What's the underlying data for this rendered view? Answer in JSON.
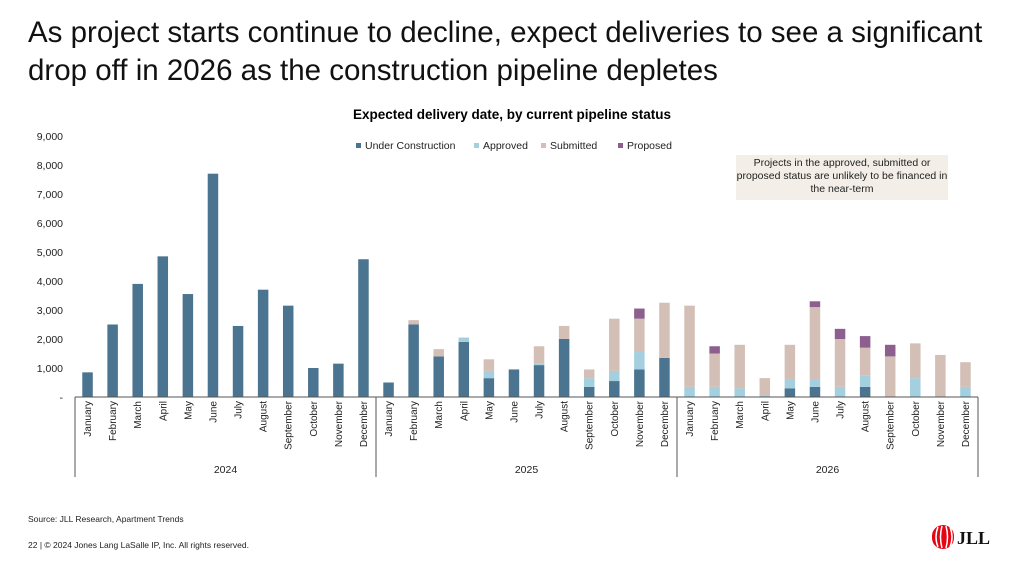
{
  "slide": {
    "title": "As project starts continue to decline, expect deliveries to see a significant drop off in 2026 as the construction pipeline depletes",
    "note": "Projects in the approved, submitted or proposed status are unlikely to be financed in the near-term",
    "source": "Source: JLL Research, Apartment Trends",
    "footer": "22  |  © 2024 Jones Lang LaSalle IP, Inc. All rights reserved.",
    "logo_text": "JLL"
  },
  "colors": {
    "under_construction": "#4b7490",
    "approved": "#a3cfdf",
    "submitted": "#d3bfb5",
    "proposed": "#8c5f8e",
    "axis": "#555555",
    "logo_red": "#e30613"
  },
  "chart_data": {
    "type": "bar",
    "stacked": true,
    "title": "Expected delivery date, by current pipeline status",
    "xlabel": "",
    "ylabel": "",
    "ylim": [
      0,
      9000
    ],
    "yticks": [
      {
        "value": 0,
        "label": "-"
      },
      {
        "value": 1000,
        "label": "1,000"
      },
      {
        "value": 2000,
        "label": "2,000"
      },
      {
        "value": 3000,
        "label": "3,000"
      },
      {
        "value": 4000,
        "label": "4,000"
      },
      {
        "value": 5000,
        "label": "5,000"
      },
      {
        "value": 6000,
        "label": "6,000"
      },
      {
        "value": 7000,
        "label": "7,000"
      },
      {
        "value": 8000,
        "label": "8,000"
      },
      {
        "value": 9000,
        "label": "9,000"
      }
    ],
    "legend_position": "top-center",
    "months": [
      "January",
      "February",
      "March",
      "April",
      "May",
      "June",
      "July",
      "August",
      "September",
      "October",
      "November",
      "December"
    ],
    "groups": [
      {
        "label": "2024",
        "start": 0,
        "end": 11
      },
      {
        "label": "2025",
        "start": 12,
        "end": 23
      },
      {
        "label": "2026",
        "start": 24,
        "end": 35
      }
    ],
    "series": [
      {
        "name": "Under Construction",
        "key": "under_construction",
        "values": [
          850,
          2500,
          3900,
          4850,
          3550,
          7700,
          2450,
          3700,
          3150,
          1000,
          1150,
          4750,
          500,
          2500,
          1400,
          1900,
          650,
          950,
          1100,
          2000,
          350,
          550,
          950,
          1350,
          0,
          0,
          0,
          0,
          300,
          350,
          0,
          350,
          0,
          0,
          0,
          0
        ]
      },
      {
        "name": "Approved",
        "key": "approved",
        "values": [
          0,
          0,
          0,
          0,
          0,
          0,
          0,
          0,
          0,
          0,
          0,
          0,
          0,
          0,
          0,
          150,
          250,
          0,
          50,
          0,
          300,
          350,
          600,
          0,
          350,
          350,
          300,
          50,
          300,
          250,
          350,
          400,
          0,
          650,
          0,
          350
        ]
      },
      {
        "name": "Submitted",
        "key": "submitted",
        "values": [
          0,
          0,
          0,
          0,
          0,
          0,
          0,
          0,
          0,
          0,
          0,
          0,
          0,
          150,
          250,
          0,
          400,
          0,
          600,
          450,
          300,
          1800,
          1150,
          1900,
          2800,
          1150,
          1500,
          600,
          1200,
          2500,
          1650,
          950,
          1400,
          1200,
          1450,
          850
        ]
      },
      {
        "name": "Proposed",
        "key": "proposed",
        "values": [
          0,
          0,
          0,
          0,
          0,
          0,
          0,
          0,
          0,
          0,
          0,
          0,
          0,
          0,
          0,
          0,
          0,
          0,
          0,
          0,
          0,
          0,
          350,
          0,
          0,
          250,
          0,
          0,
          0,
          200,
          350,
          400,
          400,
          0,
          0,
          0
        ]
      }
    ]
  }
}
